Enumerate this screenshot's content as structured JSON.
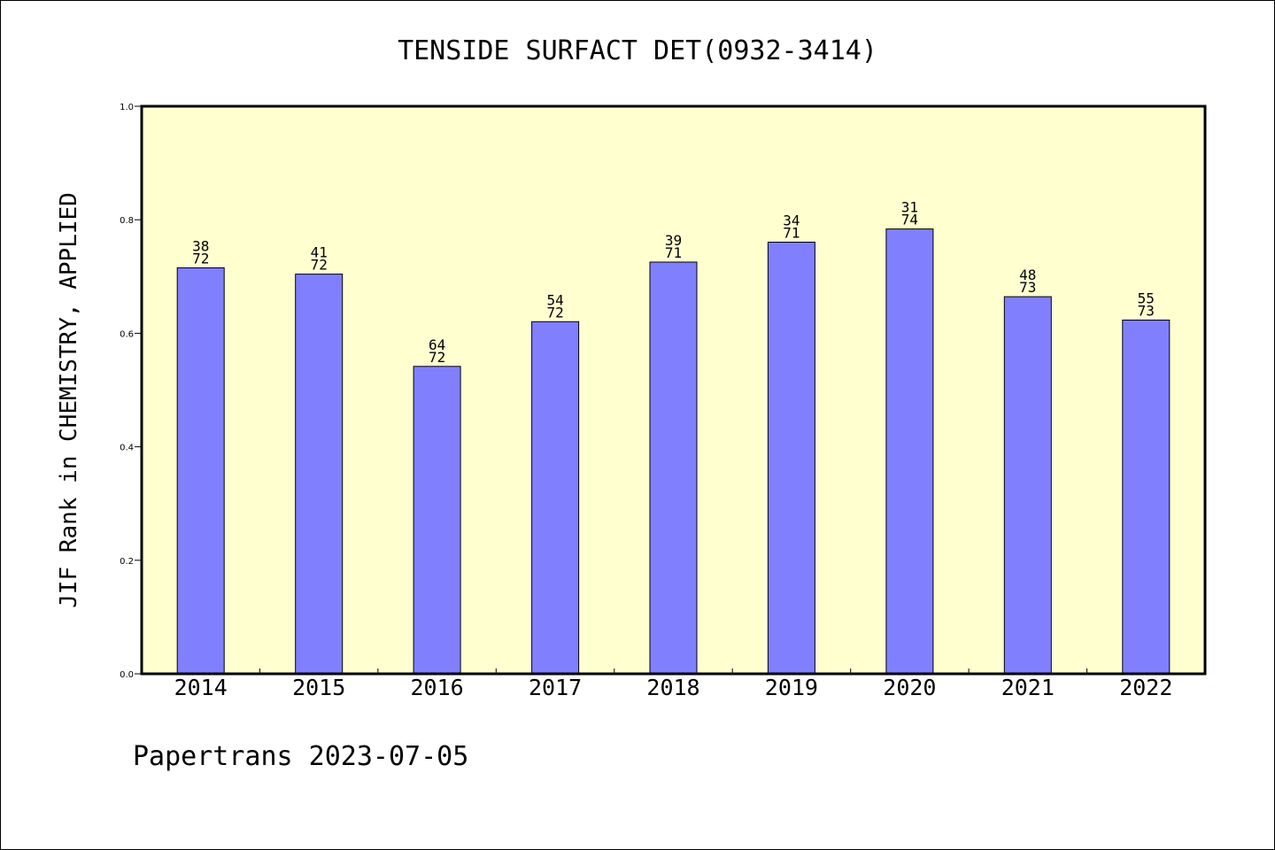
{
  "chart_data": {
    "type": "bar",
    "title": "TENSIDE SURFACT DET(0932-3414)",
    "ylabel": "JIF Rank in CHEMISTRY, APPLIED",
    "xlabel": "",
    "categories": [
      "2014",
      "2015",
      "2016",
      "2017",
      "2018",
      "2019",
      "2020",
      "2021",
      "2022"
    ],
    "values": [
      0.7153,
      0.7042,
      0.5417,
      0.6204,
      0.7254,
      0.7606,
      0.7838,
      0.6644,
      0.6233
    ],
    "labels_rank": [
      "38",
      "41",
      "64",
      "54",
      "39",
      "34",
      "31",
      "48",
      "55"
    ],
    "labels_total": [
      "72",
      "72",
      "72",
      "72",
      "71",
      "71",
      "74",
      "73",
      "73"
    ],
    "ylim": [
      0,
      1.0
    ],
    "yticks": [
      "0.0",
      "0.2",
      "0.4",
      "0.6",
      "0.8",
      "1.0"
    ],
    "grid": false,
    "plot_background": "#ffffd0",
    "bar_color": "#8080ff"
  },
  "footer": {
    "text": "Papertrans 2023-07-05"
  }
}
